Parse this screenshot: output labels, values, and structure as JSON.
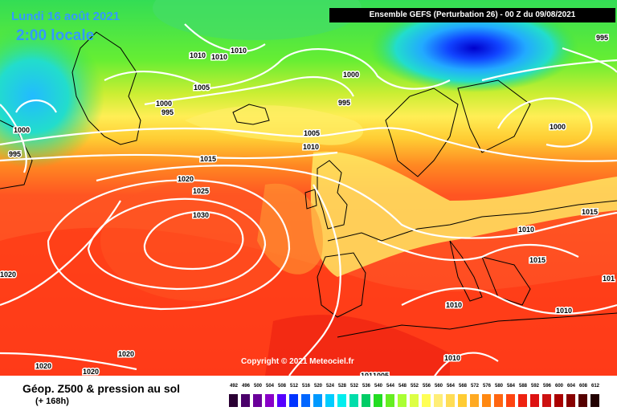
{
  "header": {
    "date": "Lundi 16 août 2021",
    "local_time": "2:00 locale",
    "run": "Ensemble GEFS  (Perturbation 26)  -  00 Z du 09/08/2021"
  },
  "map": {
    "copyright": "Copyright © 2021 Meteociel.fr",
    "isobar_labels": [
      "1010",
      "1010",
      "1010",
      "1005",
      "1000",
      "995",
      "1000",
      "995",
      "995",
      "1000",
      "995",
      "1005",
      "1010",
      "1015",
      "1020",
      "1025",
      "1030",
      "1000",
      "1010",
      "1015",
      "1015",
      "1010",
      "1010",
      "1010",
      "1020",
      "1020",
      "1020",
      "1005",
      "101",
      "1020",
      "101"
    ]
  },
  "footer": {
    "field": "Géop. Z500 & pression au sol",
    "lead": "(+ 168h)",
    "scale_ticks": [
      "492",
      "496",
      "500",
      "504",
      "508",
      "512",
      "516",
      "520",
      "524",
      "528",
      "532",
      "536",
      "540",
      "544",
      "548",
      "552",
      "556",
      "560",
      "564",
      "568",
      "572",
      "576",
      "580",
      "584",
      "588",
      "592",
      "596",
      "600",
      "604",
      "608",
      "612"
    ],
    "scale_colors": [
      "#2a0033",
      "#4a006a",
      "#6a009a",
      "#8a00c8",
      "#5500ff",
      "#0033ff",
      "#0066ff",
      "#0099ff",
      "#00ccff",
      "#00eeee",
      "#00ddaa",
      "#00cc66",
      "#22dd22",
      "#66ee22",
      "#aaff33",
      "#ddff44",
      "#ffff55",
      "#ffee77",
      "#ffdd55",
      "#ffcc33",
      "#ffaa22",
      "#ff8811",
      "#ff6611",
      "#ff4411",
      "#ee2211",
      "#dd1111",
      "#cc1111",
      "#aa0000",
      "#880000",
      "#550000",
      "#220000"
    ]
  }
}
